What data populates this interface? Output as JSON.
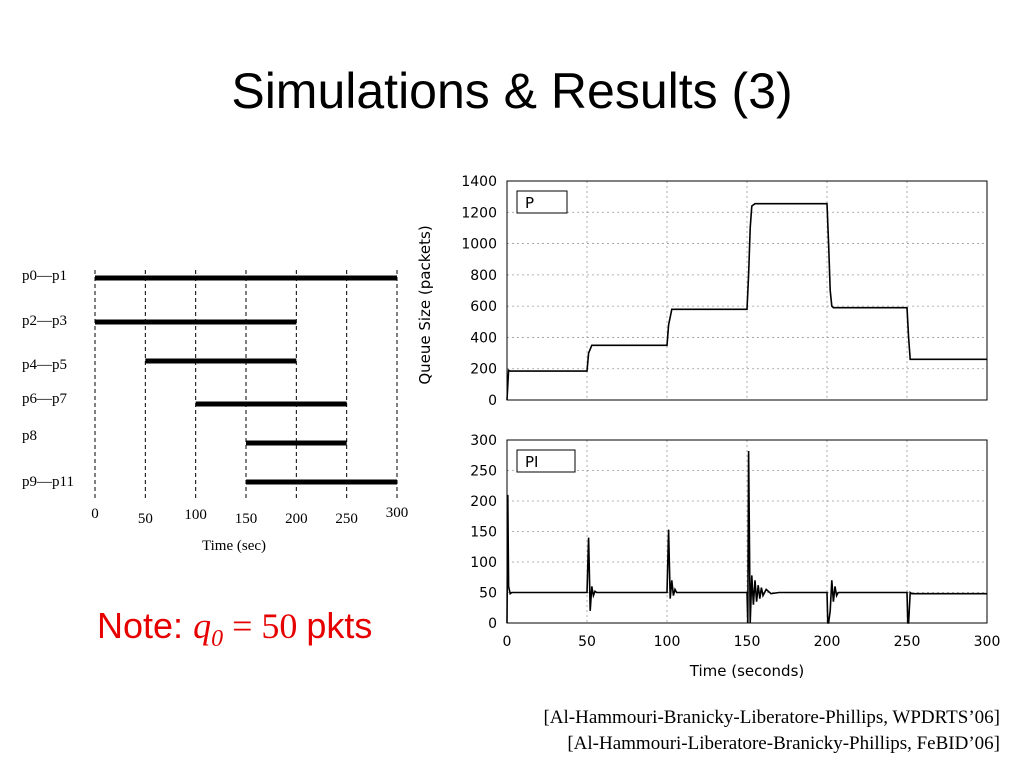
{
  "slide": {
    "title": "Simulations & Results (3)",
    "note": {
      "prefix": "Note:",
      "math_var": "q",
      "math_sub": "0",
      "math_rest": " = 50 ",
      "suffix": "pkts"
    },
    "citations": [
      "[Al-Hammouri-Branicky-Liberatore-Phillips, WPDRTS’06]",
      "[Al-Hammouri-Liberatore-Branicky-Phillips, FeBID’06]"
    ]
  },
  "chart_data": [
    {
      "type": "timeline",
      "xlabel": "Time (sec)",
      "x_ticks": [
        0,
        50,
        100,
        150,
        200,
        250,
        300
      ],
      "xlim": [
        0,
        300
      ],
      "rows": [
        {
          "label": "p0—p1",
          "start": 0,
          "end": 300
        },
        {
          "label": "p2—p3",
          "start": 0,
          "end": 200
        },
        {
          "label": "p4—p5",
          "start": 50,
          "end": 200
        },
        {
          "label": "p6—p7",
          "start": 100,
          "end": 250
        },
        {
          "label": "p8",
          "start": 150,
          "end": 250
        },
        {
          "label": "p9—p11",
          "start": 150,
          "end": 300
        }
      ]
    },
    {
      "type": "line",
      "legend": "P",
      "ylabel": "Queue Size (packets)",
      "xlim": [
        0,
        300
      ],
      "ylim": [
        0,
        1400
      ],
      "y_ticks": [
        0,
        200,
        400,
        600,
        800,
        1000,
        1200,
        1400
      ],
      "x_ticks": [
        0,
        50,
        100,
        150,
        200,
        250,
        300
      ],
      "grid": true,
      "series": [
        {
          "x": [
            0,
            1,
            2,
            50,
            51,
            53,
            100,
            101,
            103,
            150,
            151,
            152,
            153,
            155,
            200,
            201,
            202,
            203,
            204,
            250,
            251,
            252,
            300
          ],
          "y": [
            0,
            190,
            185,
            185,
            300,
            350,
            350,
            480,
            580,
            580,
            800,
            1100,
            1240,
            1255,
            1255,
            1000,
            700,
            600,
            590,
            590,
            400,
            260,
            260
          ]
        }
      ]
    },
    {
      "type": "line",
      "legend": "PI",
      "xlabel": "Time (seconds)",
      "xlim": [
        0,
        300
      ],
      "ylim": [
        0,
        300
      ],
      "y_ticks": [
        0,
        50,
        100,
        150,
        200,
        250,
        300
      ],
      "x_ticks": [
        0,
        50,
        100,
        150,
        200,
        250,
        300
      ],
      "grid": true,
      "series": [
        {
          "x": [
            0,
            0.5,
            1,
            2,
            3,
            50,
            51,
            52,
            53,
            54,
            55,
            56,
            100,
            101,
            102,
            103,
            104,
            105,
            106,
            150,
            150.5,
            151,
            152,
            153,
            154,
            155,
            156,
            157,
            158,
            159,
            160,
            162,
            165,
            170,
            175,
            200,
            200.5,
            201,
            202,
            203,
            204,
            205,
            206,
            207,
            250,
            250.5,
            251,
            252,
            253,
            300
          ],
          "y": [
            0,
            210,
            60,
            48,
            50,
            50,
            140,
            20,
            60,
            45,
            52,
            50,
            50,
            153,
            40,
            70,
            45,
            55,
            50,
            50,
            0,
            282,
            0,
            78,
            30,
            70,
            35,
            62,
            40,
            58,
            45,
            55,
            48,
            50,
            50,
            50,
            0,
            0,
            20,
            70,
            35,
            60,
            45,
            50,
            50,
            0,
            0,
            50,
            48,
            48
          ]
        }
      ]
    }
  ]
}
